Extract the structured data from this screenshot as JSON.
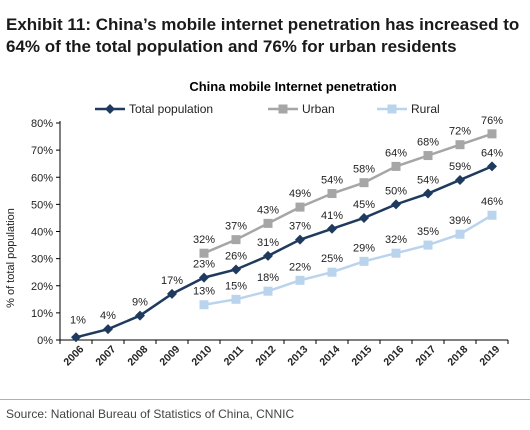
{
  "exhibit_title": "Exhibit 11: China’s mobile internet penetration has increased to 64% of the total population and 76% for urban residents",
  "source": "Source: National Bureau of Statistics of China, CNNIC",
  "colors": {
    "total": "#1f3a5f",
    "urban": "#a6a6a6",
    "rural": "#b9d4ec",
    "axis": "#000000",
    "background": "#ffffff"
  },
  "chart_data": {
    "type": "line",
    "title": "China mobile Internet penetration",
    "xlabel": "",
    "ylabel": "% of total population",
    "ylim": [
      0,
      80
    ],
    "y_ticks": [
      "0%",
      "10%",
      "20%",
      "30%",
      "40%",
      "50%",
      "60%",
      "70%",
      "80%"
    ],
    "legend_position": "top",
    "grid": false,
    "categories": [
      "2006",
      "2007",
      "2008",
      "2009",
      "2010",
      "2011",
      "2012",
      "2013",
      "2014",
      "2015",
      "2016",
      "2017",
      "2018",
      "2019"
    ],
    "series": [
      {
        "name": "Total population",
        "marker": "diamond",
        "values": [
          1,
          4,
          9,
          17,
          23,
          26,
          31,
          37,
          41,
          45,
          50,
          54,
          59,
          64
        ],
        "labels": [
          "1%",
          "4%",
          "9%",
          "17%",
          "23%",
          "26%",
          "31%",
          "37%",
          "41%",
          "45%",
          "50%",
          "54%",
          "59%",
          "64%"
        ]
      },
      {
        "name": "Urban",
        "marker": "square",
        "values": [
          null,
          null,
          null,
          null,
          32,
          37,
          43,
          49,
          54,
          58,
          64,
          68,
          72,
          76
        ],
        "labels": [
          null,
          null,
          null,
          null,
          "32%",
          "37%",
          "43%",
          "49%",
          "54%",
          "58%",
          "64%",
          "68%",
          "72%",
          "76%"
        ]
      },
      {
        "name": "Rural",
        "marker": "square",
        "values": [
          null,
          null,
          null,
          null,
          13,
          15,
          18,
          22,
          25,
          29,
          32,
          35,
          39,
          46
        ],
        "labels": [
          null,
          null,
          null,
          null,
          "13%",
          "15%",
          "18%",
          "22%",
          "25%",
          "29%",
          "32%",
          "35%",
          "39%",
          "46%"
        ]
      }
    ]
  }
}
